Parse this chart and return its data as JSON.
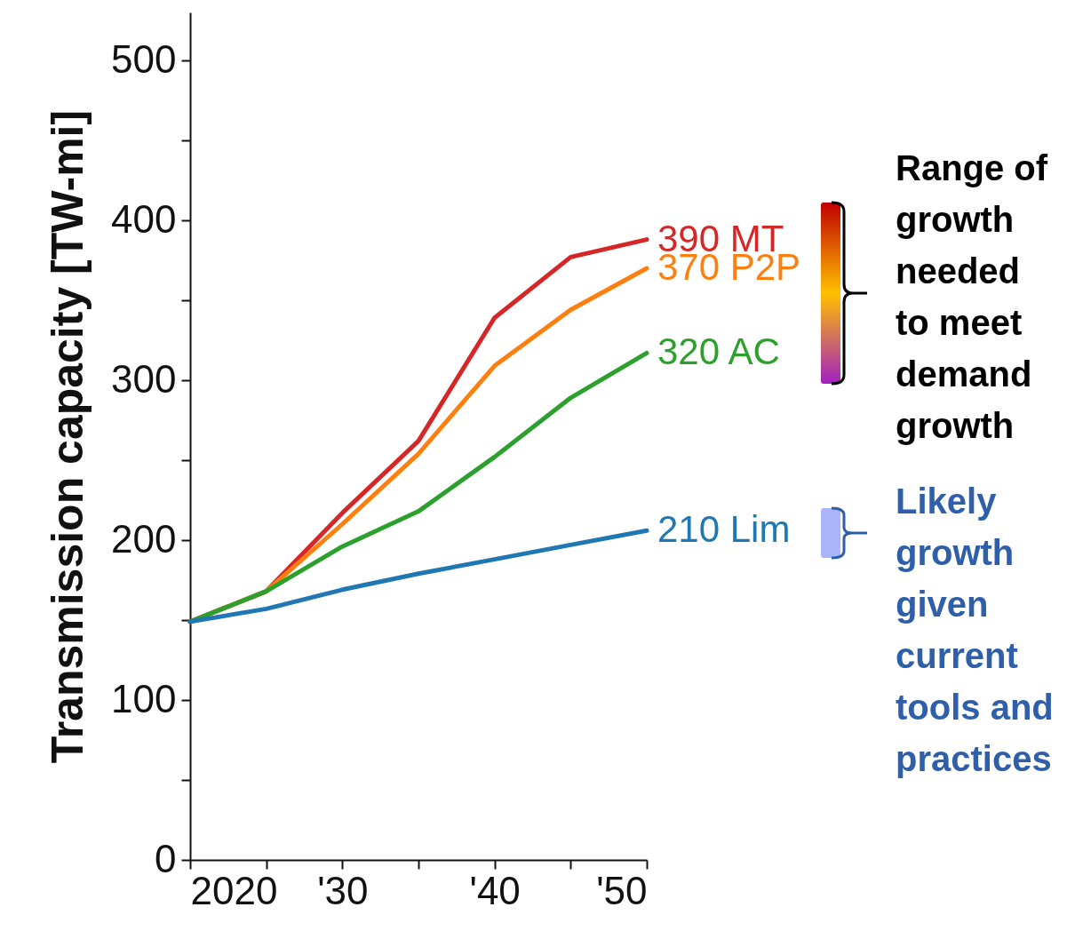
{
  "chart_data": {
    "type": "line",
    "ylabel": "Transmission capacity [TW-mi]",
    "x": [
      2020,
      2025,
      2030,
      2035,
      2040,
      2045,
      2050
    ],
    "xlim": [
      2020,
      2050
    ],
    "xticks": [
      {
        "value": 2020,
        "label": "2020"
      },
      {
        "value": 2025,
        "label": null
      },
      {
        "value": 2030,
        "label": "'30"
      },
      {
        "value": 2035,
        "label": null
      },
      {
        "value": 2040,
        "label": "'40"
      },
      {
        "value": 2045,
        "label": null
      },
      {
        "value": 2050,
        "label": "'50"
      }
    ],
    "ylim": [
      0,
      530
    ],
    "yticks": [
      0,
      {
        "value": 50,
        "label": null
      },
      100,
      {
        "value": 150,
        "label": null
      },
      200,
      {
        "value": 250,
        "label": null
      },
      300,
      {
        "value": 350,
        "label": null
      },
      400,
      {
        "value": 450,
        "label": null
      },
      500
    ],
    "series": [
      {
        "name": "390  MT",
        "color": "#d62728",
        "values": [
          149,
          168,
          217,
          262,
          339,
          377,
          388
        ]
      },
      {
        "name": "370  P2P",
        "color": "#ff7f0e",
        "values": [
          149,
          168,
          210,
          254,
          309,
          344,
          370
        ]
      },
      {
        "name": "320  AC",
        "color": "#2ca02c",
        "values": [
          149,
          168,
          196,
          218,
          252,
          289,
          317
        ]
      },
      {
        "name": "210  Lim",
        "color": "#1f77b4",
        "values": [
          149,
          157,
          169,
          179,
          188,
          197,
          206
        ]
      }
    ],
    "annotations": [
      "Range of growth needed to meet demand growth",
      "Likely growth given current tools and practices"
    ],
    "grid": false
  }
}
